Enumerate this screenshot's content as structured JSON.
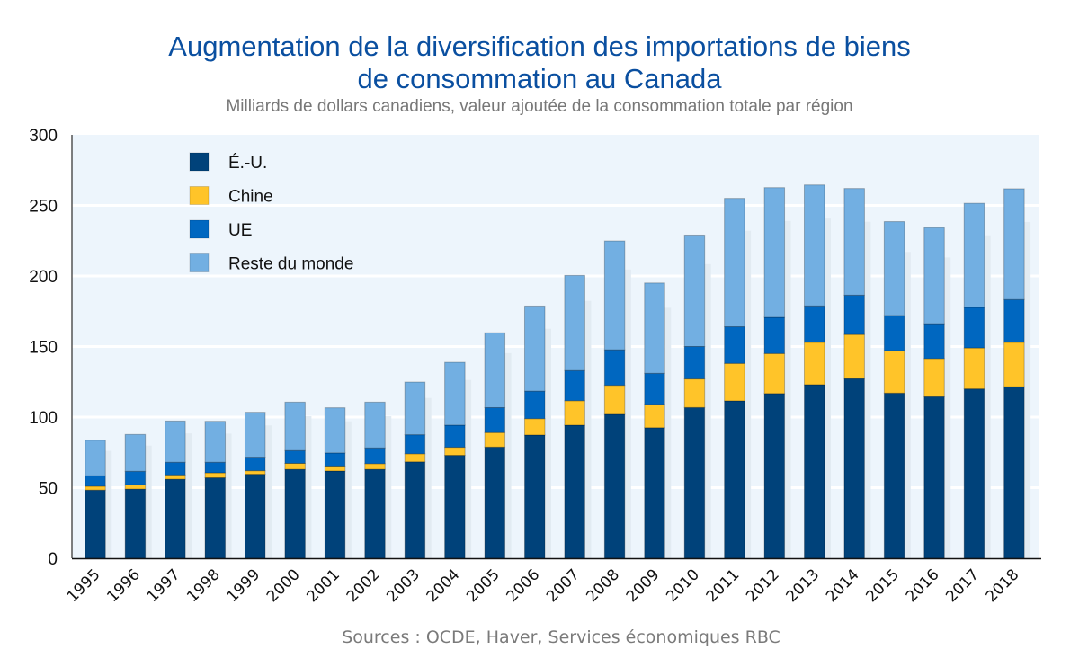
{
  "chart_data": {
    "type": "bar",
    "stacked": true,
    "title": "Augmentation de la diversification des importations de biens de consommation au Canada",
    "title_lines": [
      "Augmentation de la diversification des importations de biens",
      "de consommation au Canada"
    ],
    "subtitle": "Milliards de dollars canadiens, valeur ajoutée de la consommation totale par région",
    "source": "Sources : OCDE, Haver, Services économiques RBC",
    "xlabel": "",
    "ylabel": "",
    "ylim": [
      0,
      300
    ],
    "yticks": [
      "0",
      "50",
      "100",
      "150",
      "200",
      "250",
      "300"
    ],
    "grid": true,
    "legend_position": "top-left",
    "categories": [
      "1995",
      "1996",
      "1997",
      "1998",
      "1999",
      "2000",
      "2001",
      "2002",
      "2003",
      "2004",
      "2005",
      "2006",
      "2007",
      "2008",
      "2009",
      "2010",
      "2011",
      "2012",
      "2013",
      "2014",
      "2015",
      "2016",
      "2017",
      "2018"
    ],
    "series": [
      {
        "name": "É.-U.",
        "color": "#00427a",
        "values": [
          48.3,
          49,
          56,
          57,
          59.5,
          63,
          61.8,
          63,
          68.3,
          72.9,
          78.8,
          87.3,
          94.3,
          102,
          92.5,
          106.8,
          111.5,
          116.7,
          123,
          127.3,
          117,
          114.5,
          120,
          121.5
        ]
      },
      {
        "name": "Chine",
        "color": "#ffc429",
        "values": [
          2.7,
          3,
          3,
          3.5,
          2.5,
          4.2,
          3.5,
          4,
          5.7,
          5.7,
          10.2,
          11.6,
          17.3,
          20.5,
          16.5,
          20.2,
          26.5,
          28.3,
          30,
          31.2,
          30,
          27,
          29,
          31.5
        ]
      },
      {
        "name": "UE",
        "color": "#0067c0",
        "values": [
          7.4,
          9.6,
          9,
          7.5,
          9.6,
          9.1,
          9.3,
          11.2,
          13.5,
          15.7,
          17.7,
          19.5,
          21.4,
          25.2,
          22,
          23,
          26,
          25.7,
          25.8,
          27.9,
          25,
          24.7,
          28.8,
          30.3
        ]
      },
      {
        "name": "Reste du monde",
        "color": "#72afe2",
        "values": [
          25.2,
          26.1,
          29.2,
          29,
          31.8,
          34.3,
          32,
          32.4,
          37.3,
          44.5,
          53,
          60.3,
          67.4,
          77.1,
          64,
          79,
          91,
          91.9,
          85.7,
          75.6,
          66.5,
          68,
          73.7,
          78.5
        ]
      }
    ]
  },
  "colors": {
    "title": "#0a4fa0",
    "plot_background": "#edf5fc",
    "gridline": "#ffffff",
    "shadow": "#e2ebf2"
  }
}
